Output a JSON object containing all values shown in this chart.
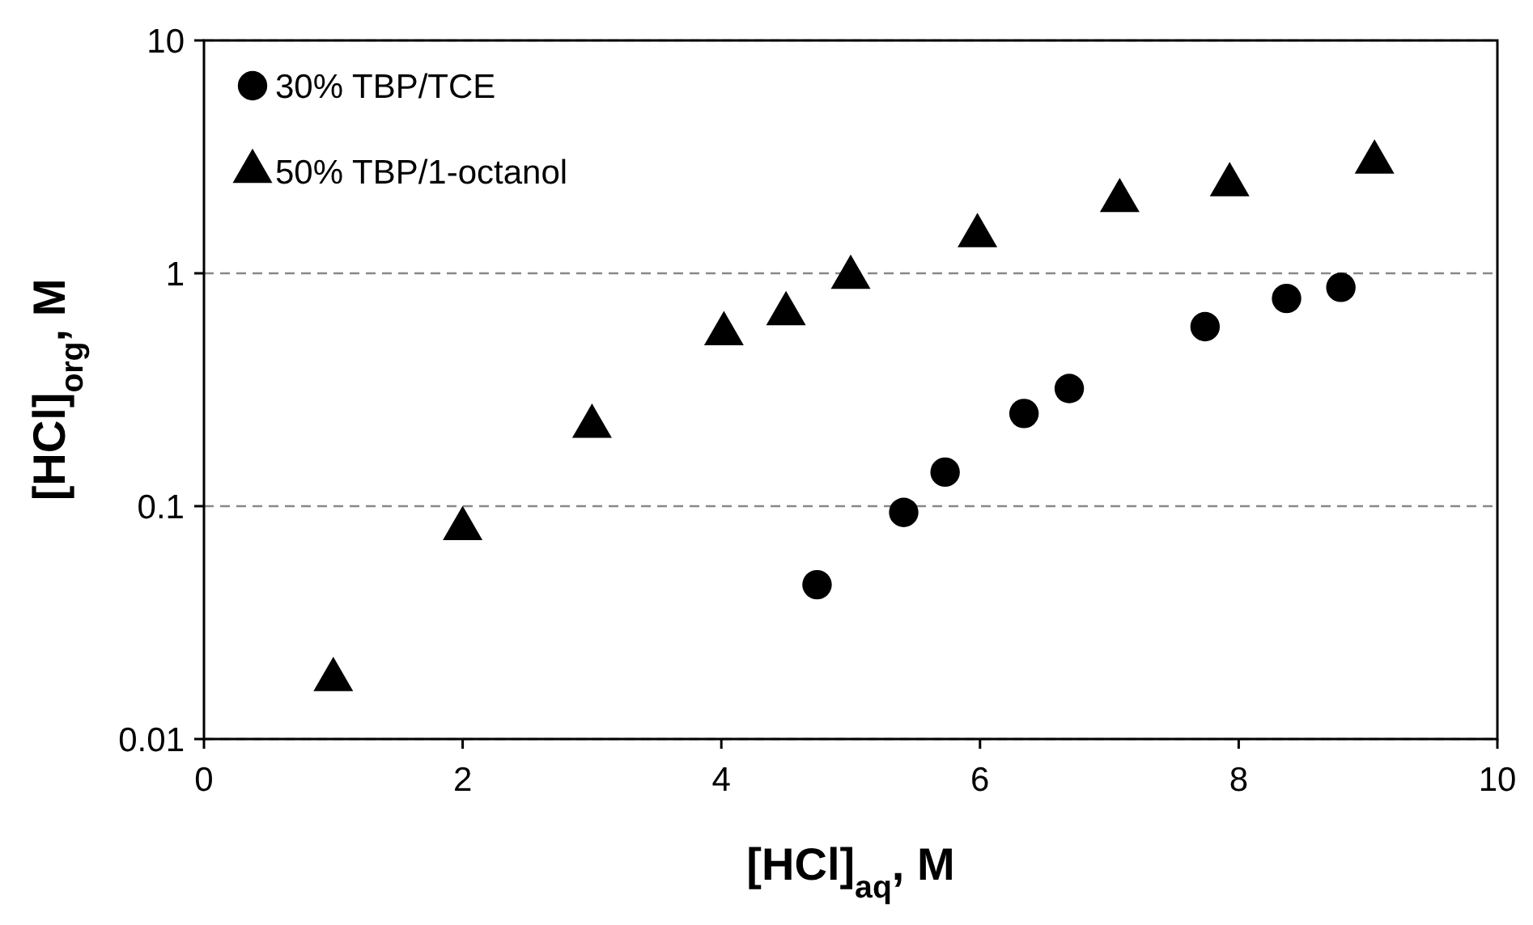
{
  "chart_data": {
    "type": "scatter",
    "xlabel": "[HCl]$_{aq}$, M",
    "ylabel": "[HCl]$_{org}$, M",
    "xlim": [
      0,
      10
    ],
    "xticks": [
      0,
      2,
      4,
      6,
      8,
      10
    ],
    "ylim": [
      0.01,
      10
    ],
    "yticks": [
      0.01,
      0.1,
      1,
      10
    ],
    "log": "y",
    "grid": "y",
    "legend": "top left",
    "series": [
      {
        "name": "30% TBP/TCE",
        "color": "#000000",
        "marker": "circle",
        "x": [
          4.74,
          5.41,
          5.73,
          6.34,
          6.69,
          7.74,
          8.37,
          8.79
        ],
        "values": [
          0.046,
          0.094,
          0.14,
          0.25,
          0.32,
          0.59,
          0.78,
          0.87
        ]
      },
      {
        "name": "50% TBP/1-octanol",
        "color": "#000000",
        "marker": "triangle",
        "x": [
          1,
          2,
          3,
          4.02,
          4.5,
          5,
          5.98,
          7.08,
          7.93,
          9.05
        ],
        "values": [
          0.018,
          0.08,
          0.22,
          0.55,
          0.67,
          0.96,
          1.45,
          2.05,
          2.4,
          3.0
        ]
      }
    ]
  }
}
